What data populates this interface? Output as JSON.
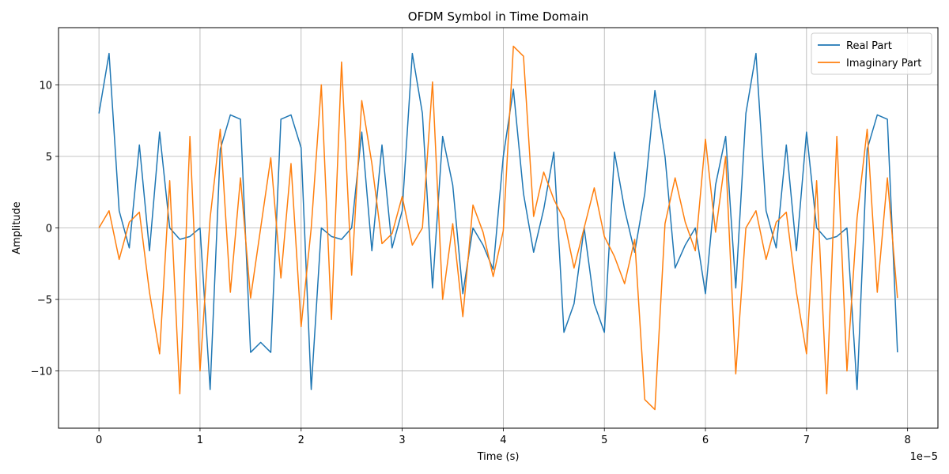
{
  "chart_data": {
    "type": "line",
    "title": "OFDM Symbol in Time Domain",
    "xlabel": "Time (s)",
    "ylabel": "Amplitude",
    "x_multiplier_label": "1e−5",
    "x_step": 0.1,
    "xlim": [
      -0.4,
      8.3
    ],
    "ylim": [
      -14.0,
      14.0
    ],
    "xticks": [
      0,
      1,
      2,
      3,
      4,
      5,
      6,
      7,
      8
    ],
    "xtick_labels": [
      "0",
      "1",
      "2",
      "3",
      "4",
      "5",
      "6",
      "7",
      "8"
    ],
    "yticks": [
      -10,
      -5,
      0,
      5,
      10
    ],
    "ytick_labels": [
      "−10",
      "−5",
      "0",
      "5",
      "10"
    ],
    "grid": true,
    "legend_position": "top-right",
    "series": [
      {
        "name": "Real Part",
        "color": "#1f77b4",
        "values": [
          8.0,
          12.2,
          1.2,
          -1.4,
          5.8,
          -1.6,
          6.7,
          0.0,
          -0.8,
          -0.6,
          0.0,
          -11.3,
          5.5,
          7.9,
          7.6,
          -8.7,
          -8.0,
          -8.7,
          7.6,
          7.9,
          5.6,
          -11.3,
          0.0,
          -0.6,
          -0.8,
          0.0,
          6.7,
          -1.6,
          5.8,
          -1.4,
          1.2,
          12.2,
          8.0,
          -4.2,
          6.4,
          3.0,
          -4.6,
          0.0,
          -1.2,
          -2.9,
          5.0,
          9.7,
          2.4,
          -1.7,
          1.3,
          5.3,
          -7.3,
          -5.3,
          0.0,
          -5.3,
          -7.3,
          5.3,
          1.3,
          -1.7,
          2.4,
          9.6,
          5.0,
          -2.8,
          -1.2,
          0.0,
          -4.6,
          3.0,
          6.4,
          -4.2,
          8.0,
          12.2,
          1.2,
          -1.4,
          5.8,
          -1.6,
          6.7,
          0.0,
          -0.8,
          -0.6,
          0.0,
          -11.3,
          5.5,
          7.9,
          7.6,
          -8.7
        ]
      },
      {
        "name": "Imaginary Part",
        "color": "#ff7f0e",
        "values": [
          0.0,
          1.2,
          -2.2,
          0.4,
          1.1,
          -4.5,
          -8.8,
          3.3,
          -11.6,
          6.4,
          -10.0,
          0.7,
          6.9,
          -4.5,
          3.5,
          -4.9,
          0.0,
          4.9,
          -3.5,
          4.5,
          -6.9,
          0.0,
          10.0,
          -6.4,
          11.6,
          -3.3,
          8.9,
          4.5,
          -1.1,
          -0.4,
          2.2,
          -1.2,
          0.0,
          10.2,
          -5.0,
          0.3,
          -6.2,
          1.6,
          -0.3,
          -3.4,
          -0.2,
          12.7,
          12.0,
          0.8,
          3.9,
          2.0,
          0.6,
          -2.8,
          0.0,
          2.8,
          -0.6,
          -2.0,
          -3.9,
          -0.8,
          -12.0,
          -12.7,
          0.3,
          3.5,
          0.4,
          -1.6,
          6.2,
          -0.3,
          5.0,
          -10.2,
          0.0,
          1.2,
          -2.2,
          0.4,
          1.1,
          -4.5,
          -8.8,
          3.3,
          -11.6,
          6.4,
          -10.0,
          0.7,
          6.9,
          -4.5,
          3.5,
          -4.9
        ]
      }
    ]
  }
}
